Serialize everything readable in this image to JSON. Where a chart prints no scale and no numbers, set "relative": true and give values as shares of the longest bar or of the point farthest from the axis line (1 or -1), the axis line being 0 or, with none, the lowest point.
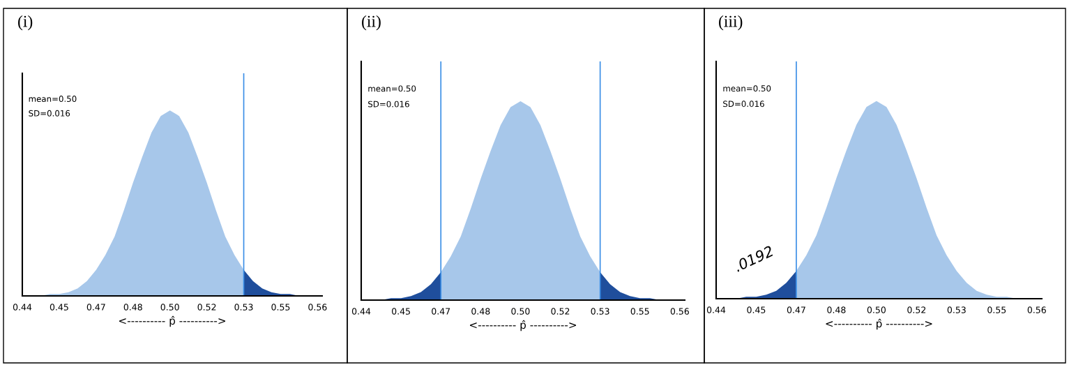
{
  "chart_data": [
    {
      "type": "area",
      "title": "(i)",
      "xlabel": "<---------- p̂ ---------->",
      "annotations": [
        "mean=0.50",
        "SD=0.016"
      ],
      "relative": true,
      "grid": false,
      "xlim": [
        0.436,
        0.566
      ],
      "xticks": [
        {
          "value": 0.436,
          "label": "0.44"
        },
        {
          "value": 0.452,
          "label": "0.45"
        },
        {
          "value": 0.468,
          "label": "0.47"
        },
        {
          "value": 0.484,
          "label": "0.48"
        },
        {
          "value": 0.5,
          "label": "0.50"
        },
        {
          "value": 0.516,
          "label": "0.52"
        },
        {
          "value": 0.532,
          "label": "0.53"
        },
        {
          "value": 0.548,
          "label": "0.55"
        },
        {
          "value": 0.564,
          "label": "0.56"
        }
      ],
      "series": [
        {
          "color": "#a7c7ea",
          "x": [
            0.436,
            0.44,
            0.444,
            0.448,
            0.452,
            0.456,
            0.46,
            0.464,
            0.468,
            0.472,
            0.476,
            0.48,
            0.484,
            0.488,
            0.492,
            0.496,
            0.5,
            0.504,
            0.508,
            0.512,
            0.516,
            0.52,
            0.524,
            0.528,
            0.532
          ],
          "values": [
            0,
            0,
            0,
            0.01,
            0.01,
            0.02,
            0.04,
            0.08,
            0.14,
            0.22,
            0.32,
            0.46,
            0.61,
            0.75,
            0.88,
            0.97,
            1,
            0.97,
            0.88,
            0.75,
            0.61,
            0.46,
            0.32,
            0.22,
            0.14
          ]
        },
        {
          "color": "#1f4e9c",
          "x": [
            0.532,
            0.536,
            0.54,
            0.544,
            0.548,
            0.552,
            0.556,
            0.56,
            0.564
          ],
          "values": [
            0.14,
            0.08,
            0.04,
            0.02,
            0.01,
            0.01,
            0,
            0,
            0
          ]
        }
      ],
      "ref_lines": [
        {
          "axis": "x",
          "value": 0.532,
          "color": "#3a8ee6"
        }
      ]
    },
    {
      "type": "area",
      "title": "(ii)",
      "xlabel": "<---------- p̂ ---------->",
      "annotations": [
        "mean=0.50",
        "SD=0.016"
      ],
      "relative": true,
      "grid": false,
      "xlim": [
        0.436,
        0.566
      ],
      "xticks": [
        {
          "value": 0.436,
          "label": "0.44"
        },
        {
          "value": 0.452,
          "label": "0.45"
        },
        {
          "value": 0.468,
          "label": "0.47"
        },
        {
          "value": 0.484,
          "label": "0.48"
        },
        {
          "value": 0.5,
          "label": "0.50"
        },
        {
          "value": 0.516,
          "label": "0.52"
        },
        {
          "value": 0.532,
          "label": "0.53"
        },
        {
          "value": 0.548,
          "label": "0.55"
        },
        {
          "value": 0.564,
          "label": "0.56"
        }
      ],
      "series": [
        {
          "color": "#1f4e9c",
          "x": [
            0.436,
            0.44,
            0.444,
            0.448,
            0.452,
            0.456,
            0.46,
            0.464,
            0.468
          ],
          "values": [
            0,
            0,
            0,
            0.01,
            0.01,
            0.02,
            0.04,
            0.08,
            0.14
          ]
        },
        {
          "color": "#a7c7ea",
          "x": [
            0.468,
            0.472,
            0.476,
            0.48,
            0.484,
            0.488,
            0.492,
            0.496,
            0.5,
            0.504,
            0.508,
            0.512,
            0.516,
            0.52,
            0.524,
            0.528,
            0.532
          ],
          "values": [
            0.14,
            0.22,
            0.32,
            0.46,
            0.61,
            0.75,
            0.88,
            0.97,
            1,
            0.97,
            0.88,
            0.75,
            0.61,
            0.46,
            0.32,
            0.22,
            0.14
          ]
        },
        {
          "color": "#1f4e9c",
          "x": [
            0.532,
            0.536,
            0.54,
            0.544,
            0.548,
            0.552,
            0.556,
            0.56,
            0.564
          ],
          "values": [
            0.14,
            0.08,
            0.04,
            0.02,
            0.01,
            0.01,
            0,
            0,
            0
          ]
        }
      ],
      "ref_lines": [
        {
          "axis": "x",
          "value": 0.468,
          "color": "#3a8ee6"
        },
        {
          "axis": "x",
          "value": 0.532,
          "color": "#3a8ee6"
        }
      ]
    },
    {
      "type": "area",
      "title": "(iii)",
      "xlabel": "<---------- p̂ ---------->",
      "annotations": [
        "mean=0.50",
        "SD=0.016",
        ".0192"
      ],
      "relative": true,
      "grid": false,
      "xlim": [
        0.436,
        0.566
      ],
      "xticks": [
        {
          "value": 0.436,
          "label": "0.44"
        },
        {
          "value": 0.452,
          "label": "0.45"
        },
        {
          "value": 0.468,
          "label": "0.47"
        },
        {
          "value": 0.484,
          "label": "0.48"
        },
        {
          "value": 0.5,
          "label": "0.50"
        },
        {
          "value": 0.516,
          "label": "0.52"
        },
        {
          "value": 0.532,
          "label": "0.53"
        },
        {
          "value": 0.548,
          "label": "0.55"
        },
        {
          "value": 0.564,
          "label": "0.56"
        }
      ],
      "series": [
        {
          "color": "#1f4e9c",
          "x": [
            0.436,
            0.44,
            0.444,
            0.448,
            0.452,
            0.456,
            0.46,
            0.464,
            0.468
          ],
          "values": [
            0,
            0,
            0,
            0.01,
            0.01,
            0.02,
            0.04,
            0.08,
            0.14
          ]
        },
        {
          "color": "#a7c7ea",
          "x": [
            0.468,
            0.472,
            0.476,
            0.48,
            0.484,
            0.488,
            0.492,
            0.496,
            0.5,
            0.504,
            0.508,
            0.512,
            0.516,
            0.52,
            0.524,
            0.528,
            0.532,
            0.536,
            0.54,
            0.544,
            0.548,
            0.552,
            0.556,
            0.56,
            0.564
          ],
          "values": [
            0.14,
            0.22,
            0.32,
            0.46,
            0.61,
            0.75,
            0.88,
            0.97,
            1,
            0.97,
            0.88,
            0.75,
            0.61,
            0.46,
            0.32,
            0.22,
            0.14,
            0.08,
            0.04,
            0.02,
            0.01,
            0.01,
            0,
            0,
            0
          ]
        }
      ],
      "ref_lines": [
        {
          "axis": "x",
          "value": 0.468,
          "color": "#3a8ee6"
        }
      ]
    }
  ]
}
